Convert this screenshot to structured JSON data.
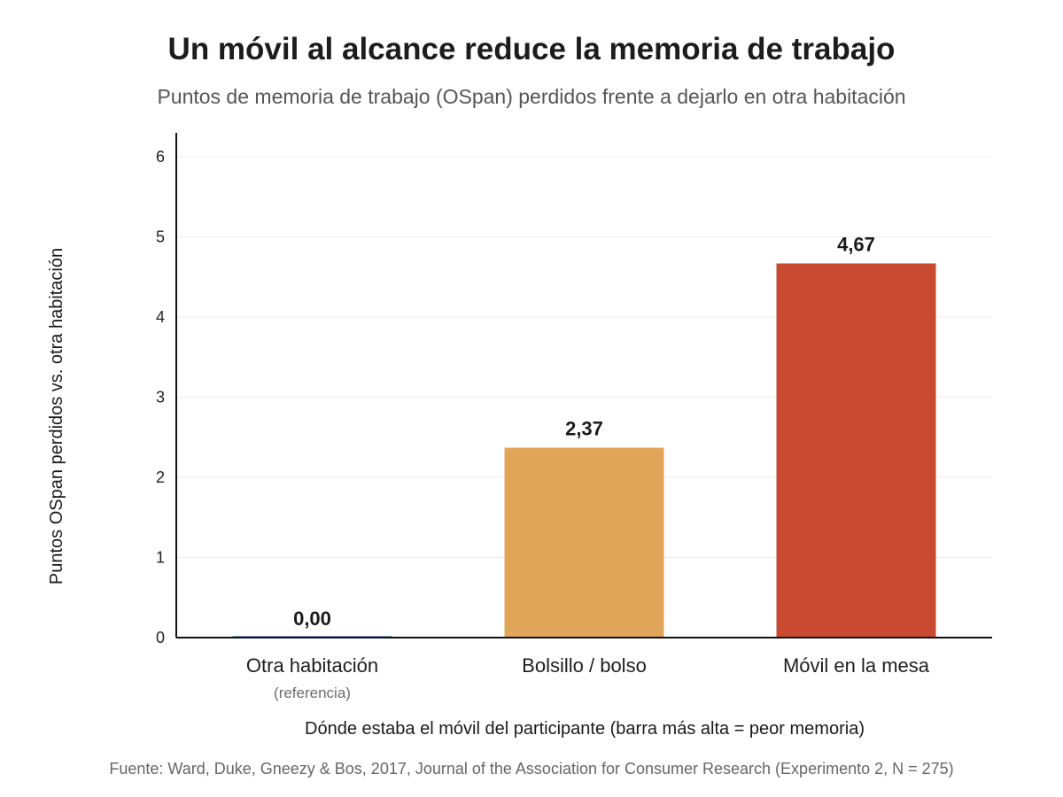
{
  "title": "Un móvil al alcance reduce la memoria de trabajo",
  "subtitle": "Puntos de memoria de trabajo (OSpan) perdidos frente a dejarlo en otra habitación",
  "source": "Fuente: Ward, Duke, Gneezy & Bos, 2017, Journal of the Association for Consumer Research (Experimento 2, N = 275)",
  "colors": {
    "baseline": "#7fa3c7",
    "bolsillo": "#e1a55a",
    "mesa": "#c84b31",
    "grid": "#eeeeee",
    "axis": "#111111"
  },
  "chart_data": {
    "type": "bar",
    "categories": [
      "Otra habitación",
      "Bolsillo / bolso",
      "Móvil en la mesa"
    ],
    "category_sublabels": [
      "(referencia)",
      "",
      ""
    ],
    "values": [
      0.0,
      2.37,
      4.67
    ],
    "data_labels": [
      "0,00",
      "2,37",
      "4,67"
    ],
    "xlabel": "Dónde estaba el móvil del participante (barra más alta = peor memoria)",
    "ylabel": "Puntos OSpan perdidos vs. otra habitación",
    "ylim": [
      0,
      6.3
    ],
    "yticks": [
      0,
      1,
      2,
      3,
      4,
      5,
      6
    ],
    "grid": true,
    "legend": "none"
  }
}
